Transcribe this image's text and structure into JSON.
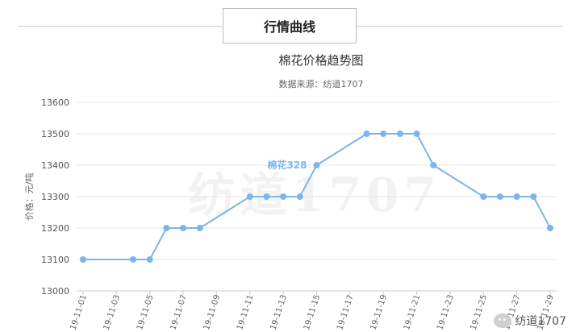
{
  "header": {
    "title": "行情曲线"
  },
  "chart_data": {
    "type": "line",
    "title": "棉花价格趋势图",
    "subtitle": "数据来源：纺道1707",
    "ylabel": "价格：元/吨",
    "watermark": "纺道1707",
    "ylim": [
      13000,
      13600
    ],
    "yticks": [
      13000,
      13100,
      13200,
      13300,
      13400,
      13500,
      13600
    ],
    "x_start": "19-11-01",
    "x_end": "19-11-29",
    "x_tick_labels": [
      "19-11-01",
      "19-11-03",
      "19-11-05",
      "19-11-07",
      "19-11-09",
      "19-11-11",
      "19-11-13",
      "19-11-15",
      "19-11-17",
      "19-11-19",
      "19-11-21",
      "19-11-23",
      "19-11-25",
      "19-11-27",
      "19-11-29"
    ],
    "points": [
      {
        "x": "19-11-01",
        "y": 13100
      },
      {
        "x": "19-11-04",
        "y": 13100
      },
      {
        "x": "19-11-05",
        "y": 13100
      },
      {
        "x": "19-11-06",
        "y": 13200
      },
      {
        "x": "19-11-07",
        "y": 13200
      },
      {
        "x": "19-11-08",
        "y": 13200
      },
      {
        "x": "19-11-11",
        "y": 13300
      },
      {
        "x": "19-11-12",
        "y": 13300
      },
      {
        "x": "19-11-13",
        "y": 13300
      },
      {
        "x": "19-11-14",
        "y": 13300
      },
      {
        "x": "19-11-15",
        "y": 13400
      },
      {
        "x": "19-11-18",
        "y": 13500
      },
      {
        "x": "19-11-19",
        "y": 13500
      },
      {
        "x": "19-11-20",
        "y": 13500
      },
      {
        "x": "19-11-21",
        "y": 13500
      },
      {
        "x": "19-11-22",
        "y": 13400
      },
      {
        "x": "19-11-25",
        "y": 13300
      },
      {
        "x": "19-11-26",
        "y": 13300
      },
      {
        "x": "19-11-27",
        "y": 13300
      },
      {
        "x": "19-11-28",
        "y": 13300
      },
      {
        "x": "19-11-29",
        "y": 13200
      }
    ],
    "series_label": {
      "text": "棉花328",
      "x": "19-11-15",
      "y": 13400
    },
    "line_color": "#7cb5ec",
    "label_color": "#7cb5ec",
    "grid": true
  },
  "footer": {
    "logo_text": "纺道1707"
  }
}
